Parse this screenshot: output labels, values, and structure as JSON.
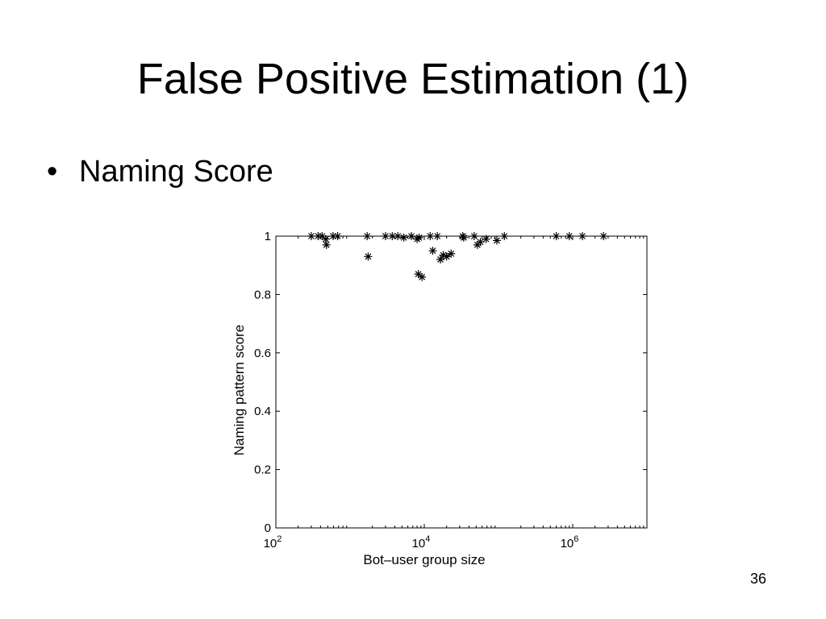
{
  "slide": {
    "title": "False Positive Estimation (1)",
    "bullet_symbol": "•",
    "bullet": "Naming Score",
    "number": "36"
  },
  "chart_data": {
    "type": "scatter",
    "marker": "*",
    "xlabel": "Bot–user group size",
    "ylabel": "Naming pattern score",
    "xscale": "log",
    "xlim": [
      100,
      10000000
    ],
    "ylim": [
      0,
      1
    ],
    "xticks": [
      {
        "value": 100,
        "base": "10",
        "exp": "2"
      },
      {
        "value": 10000,
        "base": "10",
        "exp": "4"
      },
      {
        "value": 1000000,
        "base": "10",
        "exp": "6"
      }
    ],
    "yticks": [
      {
        "value": 0,
        "label": "0"
      },
      {
        "value": 0.2,
        "label": "0.2"
      },
      {
        "value": 0.4,
        "label": "0.4"
      },
      {
        "value": 0.6,
        "label": "0.6"
      },
      {
        "value": 0.8,
        "label": "0.8"
      },
      {
        "value": 1,
        "label": "1"
      }
    ],
    "grid": false,
    "points": [
      {
        "x": 300,
        "y": 1.0
      },
      {
        "x": 370,
        "y": 1.0
      },
      {
        "x": 420,
        "y": 1.0
      },
      {
        "x": 470,
        "y": 0.99
      },
      {
        "x": 480,
        "y": 0.97
      },
      {
        "x": 590,
        "y": 1.0
      },
      {
        "x": 680,
        "y": 1.0
      },
      {
        "x": 1700,
        "y": 1.0
      },
      {
        "x": 1750,
        "y": 0.93
      },
      {
        "x": 3000,
        "y": 1.0
      },
      {
        "x": 3700,
        "y": 1.0
      },
      {
        "x": 4400,
        "y": 1.0
      },
      {
        "x": 5300,
        "y": 0.995
      },
      {
        "x": 6700,
        "y": 1.0
      },
      {
        "x": 8000,
        "y": 0.99
      },
      {
        "x": 8500,
        "y": 0.995
      },
      {
        "x": 8300,
        "y": 0.87
      },
      {
        "x": 9300,
        "y": 0.86
      },
      {
        "x": 12000,
        "y": 1.0
      },
      {
        "x": 13000,
        "y": 0.95
      },
      {
        "x": 15000,
        "y": 1.0
      },
      {
        "x": 16500,
        "y": 0.92
      },
      {
        "x": 18000,
        "y": 0.935
      },
      {
        "x": 20000,
        "y": 0.93
      },
      {
        "x": 23000,
        "y": 0.94
      },
      {
        "x": 33000,
        "y": 1.0
      },
      {
        "x": 34000,
        "y": 0.995
      },
      {
        "x": 47000,
        "y": 1.0
      },
      {
        "x": 52000,
        "y": 0.97
      },
      {
        "x": 57000,
        "y": 0.98
      },
      {
        "x": 68000,
        "y": 0.99
      },
      {
        "x": 95000,
        "y": 0.985
      },
      {
        "x": 120000,
        "y": 1.0
      },
      {
        "x": 600000,
        "y": 1.0
      },
      {
        "x": 900000,
        "y": 1.0
      },
      {
        "x": 1350000,
        "y": 1.0
      },
      {
        "x": 2600000,
        "y": 1.0
      }
    ]
  }
}
